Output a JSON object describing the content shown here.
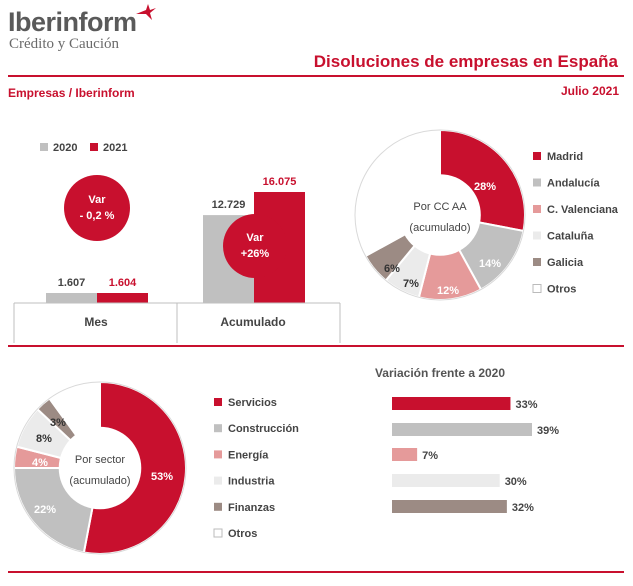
{
  "header": {
    "brand": "Iberinform",
    "brand_sub": "Crédito y Caución",
    "title": "Disoluciones de empresas en España",
    "source": "Empresas / Iberinform",
    "date": "Julio 2021"
  },
  "colors": {
    "red": "#c8102e",
    "gray": "#c0c0c0",
    "pink": "#e59a9a",
    "light": "#ebebeb",
    "taupe": "#9c8b84",
    "white": "#ffffff",
    "text": "#333333"
  },
  "chart_data": [
    {
      "type": "bar",
      "categories": [
        "Mes",
        "Acumulado"
      ],
      "series": [
        {
          "name": "2020",
          "values": [
            1607,
            12729
          ],
          "labels": [
            "1.607",
            "12.729"
          ],
          "color": "#c0c0c0"
        },
        {
          "name": "2021",
          "values": [
            1604,
            16075
          ],
          "labels": [
            "1.604",
            "16.075"
          ],
          "color": "#c8102e"
        }
      ],
      "annotations": [
        {
          "category": "Mes",
          "text": [
            "Var",
            "- 0,2 %"
          ]
        },
        {
          "category": "Acumulado",
          "text": [
            "Var",
            "+26%"
          ]
        }
      ],
      "legend": "top",
      "grid": false
    },
    {
      "type": "pie",
      "center_label": [
        "Por CC AA",
        "(acumulado)"
      ],
      "labels": [
        "Madrid",
        "Andalucía",
        "C. Valenciana",
        "Cataluña",
        "Galicia",
        "Otros"
      ],
      "values": [
        28,
        14,
        12,
        7,
        6,
        33
      ],
      "value_labels": [
        "28%",
        "14%",
        "12%",
        "7%",
        "6%",
        ""
      ],
      "colors": [
        "#c8102e",
        "#c0c0c0",
        "#e59a9a",
        "#ebebeb",
        "#9c8b84",
        "#ffffff"
      ],
      "legend": "right"
    },
    {
      "type": "pie",
      "center_label": [
        "Por sector",
        "(acumulado)"
      ],
      "labels": [
        "Servicios",
        "Construcción",
        "Energía",
        "Industria",
        "Finanzas",
        "Otros"
      ],
      "values": [
        53,
        22,
        4,
        8,
        3,
        10
      ],
      "value_labels": [
        "53%",
        "22%",
        "4%",
        "8%",
        "3%",
        ""
      ],
      "colors": [
        "#c8102e",
        "#c0c0c0",
        "#e59a9a",
        "#ebebeb",
        "#9c8b84",
        "#ffffff"
      ],
      "legend": "right"
    },
    {
      "type": "bar",
      "orientation": "horizontal",
      "title": "Variación frente a 2020",
      "categories": [
        "Servicios",
        "Construcción",
        "Energía",
        "Industria",
        "Finanzas"
      ],
      "values": [
        33,
        39,
        7,
        30,
        32
      ],
      "value_labels": [
        "33%",
        "39%",
        "7%",
        "30%",
        "32%"
      ],
      "colors": [
        "#c8102e",
        "#c0c0c0",
        "#e59a9a",
        "#ebebeb",
        "#9c8b84"
      ],
      "xlim": [
        0,
        39
      ]
    }
  ]
}
